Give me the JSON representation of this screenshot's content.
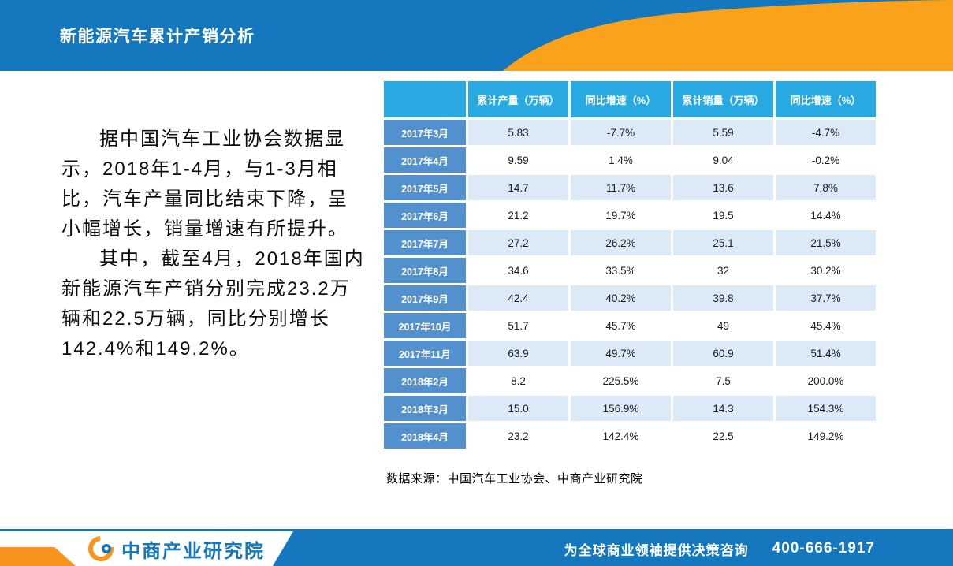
{
  "header": {
    "title": "新能源汽车累计产销分析",
    "band_color": "#1577BE",
    "ribbon_color": "#FAA21B"
  },
  "intro": {
    "p1": "据中国汽车工业协会数据显示，2018年1-4月，与1-3月相比，汽车产量同比结束下降，呈小幅增长，销量增速有所提升。",
    "p2": "其中，截至4月，2018年国内新能源汽车产销分别完成23.2万辆和22.5万辆，同比分别增长142.4%和149.2%。"
  },
  "table": {
    "header_bg": "#29A9E1",
    "label_bg": "#5291CE",
    "stripe_bg": "#DCE9F7",
    "columns": [
      "",
      "累计产量（万辆）",
      "同比增速（%）",
      "累计销量（万辆）",
      "同比增速（%）"
    ],
    "rows": [
      {
        "label": "2017年3月",
        "values": [
          "5.83",
          "-7.7%",
          "5.59",
          "-4.7%"
        ]
      },
      {
        "label": "2017年4月",
        "values": [
          "9.59",
          "1.4%",
          "9.04",
          "-0.2%"
        ]
      },
      {
        "label": "2017年5月",
        "values": [
          "14.7",
          "11.7%",
          "13.6",
          "7.8%"
        ]
      },
      {
        "label": "2017年6月",
        "values": [
          "21.2",
          "19.7%",
          "19.5",
          "14.4%"
        ]
      },
      {
        "label": "2017年7月",
        "values": [
          "27.2",
          "26.2%",
          "25.1",
          "21.5%"
        ]
      },
      {
        "label": "2017年8月",
        "values": [
          "34.6",
          "33.5%",
          "32",
          "30.2%"
        ]
      },
      {
        "label": "2017年9月",
        "values": [
          "42.4",
          "40.2%",
          "39.8",
          "37.7%"
        ]
      },
      {
        "label": "2017年10月",
        "values": [
          "51.7",
          "45.7%",
          "49",
          "45.4%"
        ]
      },
      {
        "label": "2017年11月",
        "values": [
          "63.9",
          "49.7%",
          "60.9",
          "51.4%"
        ]
      },
      {
        "label": "2018年2月",
        "values": [
          "8.2",
          "225.5%",
          "7.5",
          "200.0%"
        ]
      },
      {
        "label": "2018年3月",
        "values": [
          "15.0",
          "156.9%",
          "14.3",
          "154.3%"
        ]
      },
      {
        "label": "2018年4月",
        "values": [
          "23.2",
          "142.4%",
          "22.5",
          "149.2%"
        ]
      }
    ]
  },
  "source_note": "数据来源：中国汽车工业协会、中商产业研究院",
  "footer": {
    "logo_text": "中商产业研究院",
    "slogan": "为全球商业领袖提供决策咨询",
    "phone": "400-666-1917"
  }
}
